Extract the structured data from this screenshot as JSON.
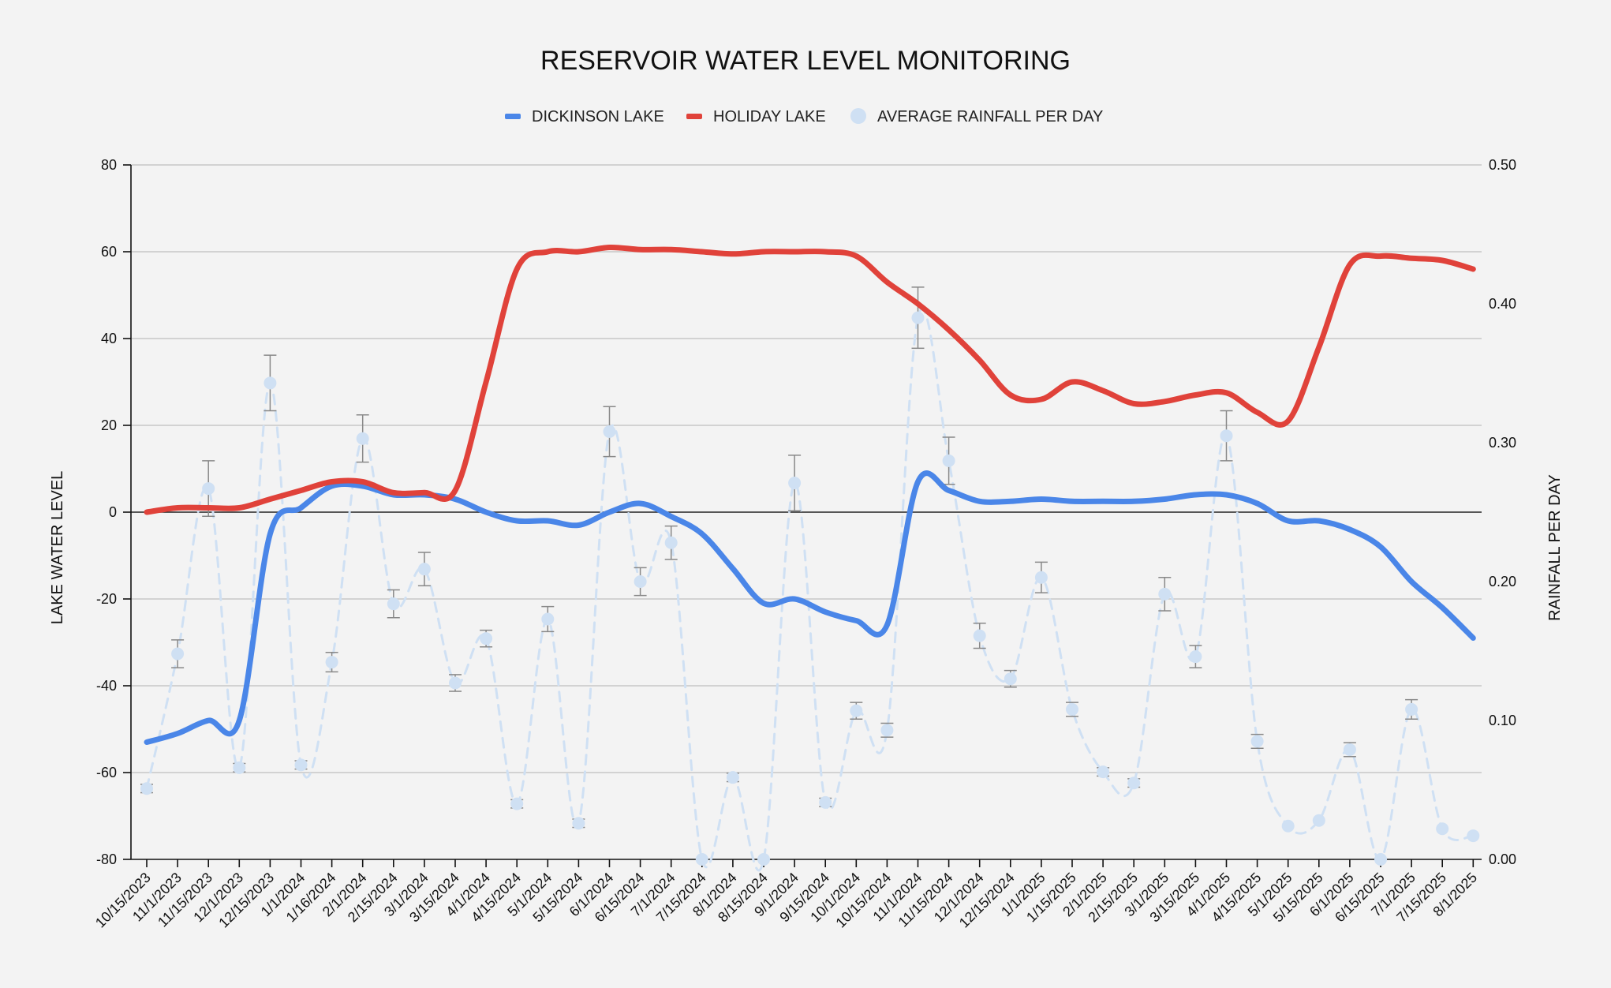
{
  "chart_data": {
    "type": "line",
    "title": "RESERVOIR WATER LEVEL MONITORING",
    "legend_position": "top-center",
    "y_left": {
      "label": "LAKE WATER LEVEL",
      "range": [
        -80,
        80
      ],
      "ticks": [
        80,
        60,
        40,
        20,
        0,
        -20,
        -40,
        -60,
        -80
      ]
    },
    "y_right": {
      "label": "RAINFALL PER DAY",
      "range": [
        0,
        0.5
      ],
      "ticks": [
        "0.50",
        "0.40",
        "0.30",
        "0.20",
        "0.10",
        "0.00"
      ]
    },
    "grid": true,
    "x": [
      "10/15/2023",
      "11/1/2023",
      "11/15/2023",
      "12/1/2023",
      "12/15/2023",
      "1/1/2024",
      "1/16/2024",
      "2/1/2024",
      "2/15/2024",
      "3/1/2024",
      "3/15/2024",
      "4/1/2024",
      "4/15/2024",
      "5/1/2024",
      "5/15/2024",
      "6/1/2024",
      "6/15/2024",
      "7/1/2024",
      "7/15/2024",
      "8/1/2024",
      "8/15/2024",
      "9/1/2024",
      "9/15/2024",
      "10/1/2024",
      "10/15/2024",
      "11/1/2024",
      "11/15/2024",
      "12/1/2024",
      "12/15/2024",
      "1/1/2025",
      "1/15/2025",
      "2/1/2025",
      "2/15/2025",
      "3/1/2025",
      "3/15/2025",
      "4/1/2025",
      "4/15/2025",
      "5/1/2025",
      "5/15/2025",
      "6/1/2025",
      "6/15/2025",
      "7/1/2025",
      "7/15/2025",
      "8/1/2025"
    ],
    "series": [
      {
        "name": "DICKINSON LAKE",
        "axis": "left",
        "color": "#4a86e8",
        "values": [
          -53,
          -51,
          -48,
          -48,
          -5,
          1,
          6,
          6,
          4,
          4,
          3,
          0,
          -2,
          -2,
          -3,
          0,
          2,
          -1,
          -5,
          -13,
          -21,
          -20,
          -23,
          -25,
          -26,
          7,
          5,
          2.5,
          2.5,
          3,
          2.5,
          2.5,
          2.5,
          3,
          4,
          4,
          2,
          -2,
          -2,
          -4,
          -8,
          -16,
          -22,
          -29
        ]
      },
      {
        "name": "HOLIDAY LAKE",
        "axis": "left",
        "color": "#e0423a",
        "values": [
          0,
          1,
          1,
          1,
          3,
          5,
          7,
          7,
          4.5,
          4.5,
          5,
          30,
          56,
          60,
          60,
          61,
          60.5,
          60.5,
          60,
          59.5,
          60,
          60,
          60,
          59,
          53,
          48,
          42,
          35,
          27,
          26,
          30,
          28,
          25,
          25.5,
          27,
          27.5,
          23,
          21,
          38,
          57,
          59,
          58.5,
          58,
          56
        ]
      },
      {
        "name": "AVERAGE RAINFALL PER DAY",
        "axis": "right",
        "color": "#cfe0f3",
        "style": "dashed-with-points-and-error-bars",
        "values": [
          0.051,
          0.148,
          0.267,
          0.066,
          0.343,
          0.068,
          0.142,
          0.303,
          0.184,
          0.209,
          0.127,
          0.159,
          0.04,
          0.173,
          0.026,
          0.308,
          0.2,
          0.228,
          0.0,
          0.059,
          0.0,
          0.271,
          0.041,
          0.107,
          0.093,
          0.39,
          0.287,
          0.161,
          0.13,
          0.203,
          0.108,
          0.063,
          0.055,
          0.191,
          0.146,
          0.305,
          0.085,
          0.024,
          0.028,
          0.079,
          0.0,
          0.108,
          0.022,
          0.017
        ],
        "errors": [
          0.003,
          0.01,
          0.02,
          0.003,
          0.02,
          0.003,
          0.007,
          0.017,
          0.01,
          0.012,
          0.006,
          0.006,
          0.003,
          0.009,
          0.003,
          0.018,
          0.01,
          0.012,
          0.0,
          0.003,
          0.0,
          0.02,
          0.003,
          0.006,
          0.005,
          0.022,
          0.017,
          0.009,
          0.006,
          0.011,
          0.005,
          0.003,
          0.003,
          0.012,
          0.008,
          0.018,
          0.005,
          0.0,
          0.0,
          0.005,
          0.0,
          0.007,
          0.0,
          0.0
        ]
      }
    ]
  },
  "colors": {
    "background": "#f3f3f3",
    "dickinson": "#4a86e8",
    "holiday": "#e0423a",
    "rainfall": "#cfe0f3",
    "error_bar": "#888888",
    "grid": "#c8c8c8"
  }
}
